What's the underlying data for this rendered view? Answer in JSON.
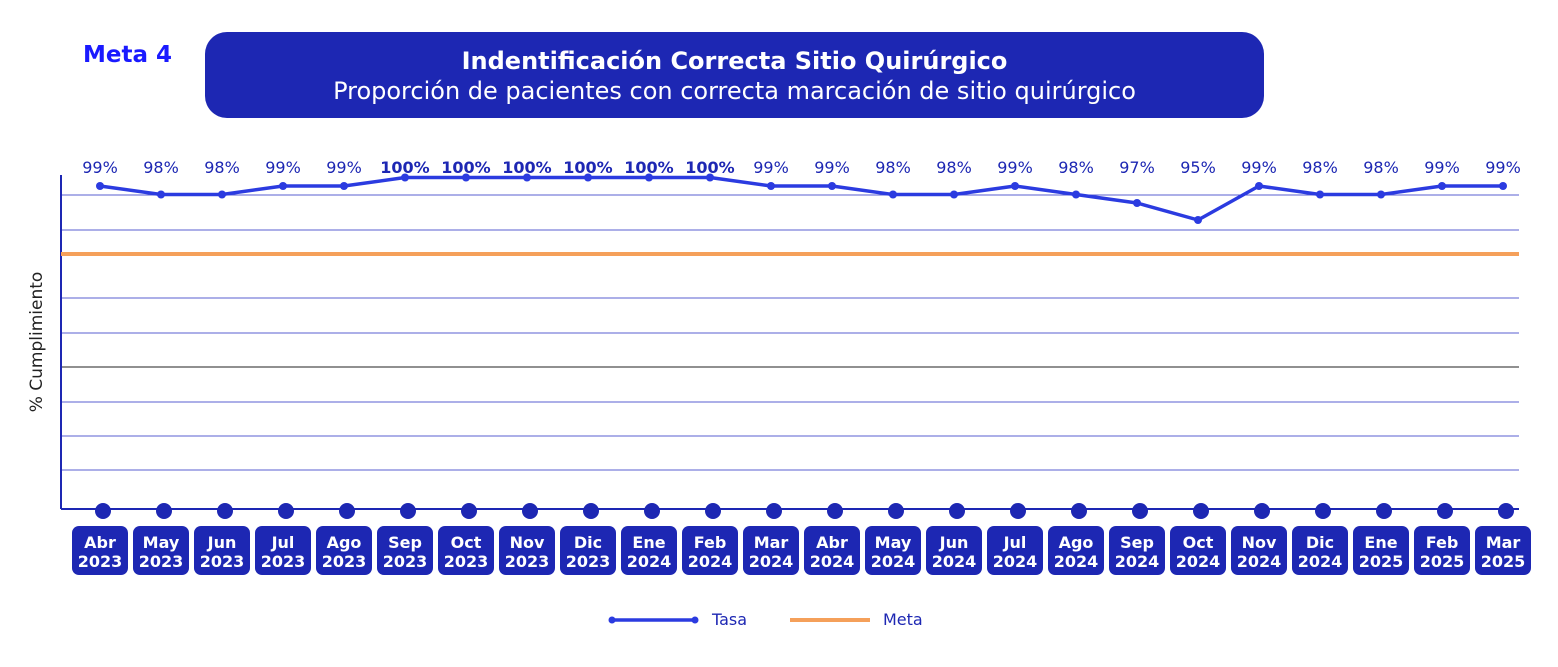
{
  "header": {
    "meta_label": "Meta 4",
    "title": "Indentificación Correcta Sitio Quirúrgico",
    "subtitle": "Proporción de pacientes con correcta marcación de sitio quirúrgico"
  },
  "colors": {
    "series": "#2b3be0",
    "goal": "#f5a05a",
    "box": "#1d27b3"
  },
  "chart_data": {
    "type": "line",
    "ylabel": "% Cumplimiento",
    "x": [
      {
        "month": "Abr",
        "year": "2023"
      },
      {
        "month": "May",
        "year": "2023"
      },
      {
        "month": "Jun",
        "year": "2023"
      },
      {
        "month": "Jul",
        "year": "2023"
      },
      {
        "month": "Ago",
        "year": "2023"
      },
      {
        "month": "Sep",
        "year": "2023"
      },
      {
        "month": "Oct",
        "year": "2023"
      },
      {
        "month": "Nov",
        "year": "2023"
      },
      {
        "month": "Dic",
        "year": "2023"
      },
      {
        "month": "Ene",
        "year": "2024"
      },
      {
        "month": "Feb",
        "year": "2024"
      },
      {
        "month": "Mar",
        "year": "2024"
      },
      {
        "month": "Abr",
        "year": "2024"
      },
      {
        "month": "May",
        "year": "2024"
      },
      {
        "month": "Jun",
        "year": "2024"
      },
      {
        "month": "Jul",
        "year": "2024"
      },
      {
        "month": "Ago",
        "year": "2024"
      },
      {
        "month": "Sep",
        "year": "2024"
      },
      {
        "month": "Oct",
        "year": "2024"
      },
      {
        "month": "Nov",
        "year": "2024"
      },
      {
        "month": "Dic",
        "year": "2024"
      },
      {
        "month": "Ene",
        "year": "2025"
      },
      {
        "month": "Feb",
        "year": "2025"
      },
      {
        "month": "Mar",
        "year": "2025"
      }
    ],
    "series": [
      {
        "name": "Tasa",
        "values": [
          99,
          98,
          98,
          99,
          99,
          100,
          100,
          100,
          100,
          100,
          100,
          99,
          99,
          98,
          98,
          99,
          98,
          97,
          95,
          99,
          98,
          98,
          99,
          99
        ],
        "labels": [
          "99%",
          "98%",
          "98%",
          "99%",
          "99%",
          "100%",
          "100%",
          "100%",
          "100%",
          "100%",
          "100%",
          "99%",
          "99%",
          "98%",
          "98%",
          "99%",
          "98%",
          "97%",
          "95%",
          "99%",
          "98%",
          "98%",
          "99%",
          "99%"
        ]
      },
      {
        "name": "Meta",
        "value": 91
      }
    ],
    "ylim": [
      61,
      102
    ],
    "grid": true,
    "legend": "bottom-center"
  }
}
